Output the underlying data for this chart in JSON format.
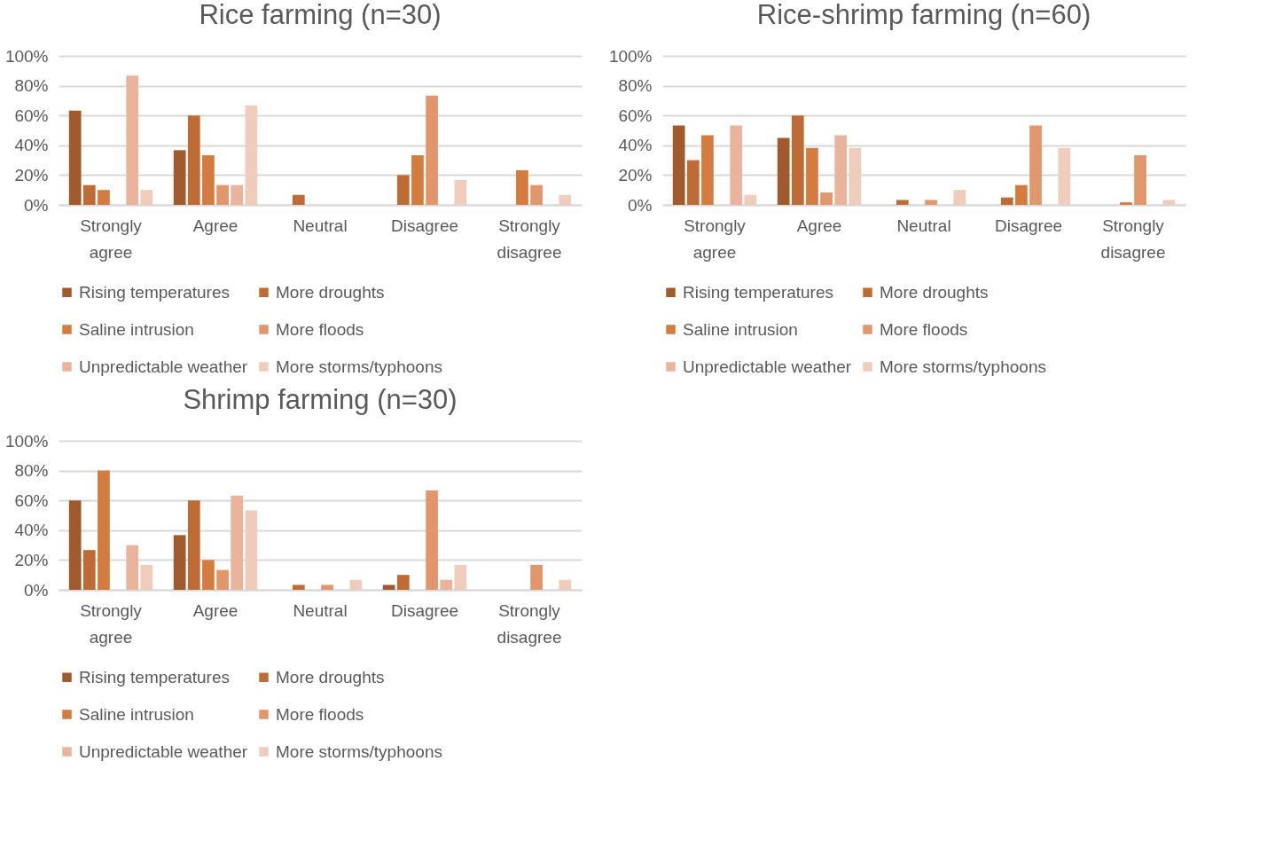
{
  "chart_data": [
    {
      "type": "bar",
      "title": "Rice farming (n=30)",
      "categories": [
        "Strongly agree",
        "Agree",
        "Neutral",
        "Disagree",
        "Strongly disagree"
      ],
      "ylim": [
        0,
        100
      ],
      "yticks": [
        {
          "value": 0,
          "label": "0%"
        },
        {
          "value": 20,
          "label": "20%"
        },
        {
          "value": 40,
          "label": "40%"
        },
        {
          "value": 60,
          "label": "60%"
        },
        {
          "value": 80,
          "label": "80%"
        },
        {
          "value": 100,
          "label": "100%"
        }
      ],
      "grid": "y",
      "legend": "bottom",
      "series": [
        {
          "name": "Rising temperatures",
          "color": "#a05a2c",
          "values": [
            63.3,
            36.7,
            null,
            null,
            null
          ]
        },
        {
          "name": "More droughts",
          "color": "#bf6b35",
          "values": [
            13.3,
            60,
            6.7,
            20,
            null
          ]
        },
        {
          "name": "Saline intrusion",
          "color": "#d47b40",
          "values": [
            10,
            33.3,
            null,
            33.3,
            23.3
          ]
        },
        {
          "name": "More floods",
          "color": "#e2966b",
          "values": [
            null,
            13.3,
            null,
            73.3,
            13.3
          ]
        },
        {
          "name": "Unpredictable weather",
          "color": "#e9b49b",
          "values": [
            86.7,
            13.3,
            null,
            null,
            null
          ]
        },
        {
          "name": "More storms/typhoons",
          "color": "#f0ccbc",
          "values": [
            10,
            66.7,
            null,
            16.7,
            6.7
          ]
        }
      ]
    },
    {
      "type": "bar",
      "title": "Rice-shrimp farming (n=60)",
      "categories": [
        "Strongly agree",
        "Agree",
        "Neutral",
        "Disagree",
        "Strongly disagree"
      ],
      "ylim": [
        0,
        100
      ],
      "yticks": [
        {
          "value": 0,
          "label": "0%"
        },
        {
          "value": 20,
          "label": "20%"
        },
        {
          "value": 40,
          "label": "40%"
        },
        {
          "value": 60,
          "label": "60%"
        },
        {
          "value": 80,
          "label": "80%"
        },
        {
          "value": 100,
          "label": "100%"
        }
      ],
      "grid": "y",
      "legend": "bottom",
      "series": [
        {
          "name": "Rising temperatures",
          "color": "#a05a2c",
          "values": [
            53.3,
            45,
            null,
            null,
            null
          ]
        },
        {
          "name": "More droughts",
          "color": "#bf6b35",
          "values": [
            30,
            60,
            3.3,
            5,
            null
          ]
        },
        {
          "name": "Saline intrusion",
          "color": "#d47b40",
          "values": [
            46.7,
            38.3,
            null,
            13.3,
            1.7
          ]
        },
        {
          "name": "More floods",
          "color": "#e2966b",
          "values": [
            null,
            8.3,
            3.3,
            53.3,
            33.3
          ]
        },
        {
          "name": "Unpredictable weather",
          "color": "#e9b49b",
          "values": [
            53.3,
            46.7,
            null,
            null,
            null
          ]
        },
        {
          "name": "More storms/typhoons",
          "color": "#f0ccbc",
          "values": [
            6.7,
            38.3,
            10,
            38.3,
            3.3
          ]
        }
      ]
    },
    {
      "type": "bar",
      "title": "Shrimp farming (n=30)",
      "categories": [
        "Strongly agree",
        "Agree",
        "Neutral",
        "Disagree",
        "Strongly disagree"
      ],
      "ylim": [
        0,
        100
      ],
      "yticks": [
        {
          "value": 0,
          "label": "0%"
        },
        {
          "value": 20,
          "label": "20%"
        },
        {
          "value": 40,
          "label": "40%"
        },
        {
          "value": 60,
          "label": "60%"
        },
        {
          "value": 80,
          "label": "80%"
        },
        {
          "value": 100,
          "label": "100%"
        }
      ],
      "grid": "y",
      "legend": "bottom",
      "series": [
        {
          "name": "Rising temperatures",
          "color": "#a05a2c",
          "values": [
            60,
            36.7,
            null,
            3.3,
            null
          ]
        },
        {
          "name": "More droughts",
          "color": "#bf6b35",
          "values": [
            26.7,
            60,
            3.3,
            10,
            null
          ]
        },
        {
          "name": "Saline intrusion",
          "color": "#d47b40",
          "values": [
            80,
            20,
            null,
            null,
            null
          ]
        },
        {
          "name": "More floods",
          "color": "#e2966b",
          "values": [
            null,
            13.3,
            3.3,
            66.7,
            16.7
          ]
        },
        {
          "name": "Unpredictable weather",
          "color": "#e9b49b",
          "values": [
            30,
            63.3,
            null,
            6.7,
            null
          ]
        },
        {
          "name": "More storms/typhoons",
          "color": "#f0ccbc",
          "values": [
            16.7,
            53.3,
            6.7,
            16.7,
            6.7
          ]
        }
      ]
    }
  ]
}
